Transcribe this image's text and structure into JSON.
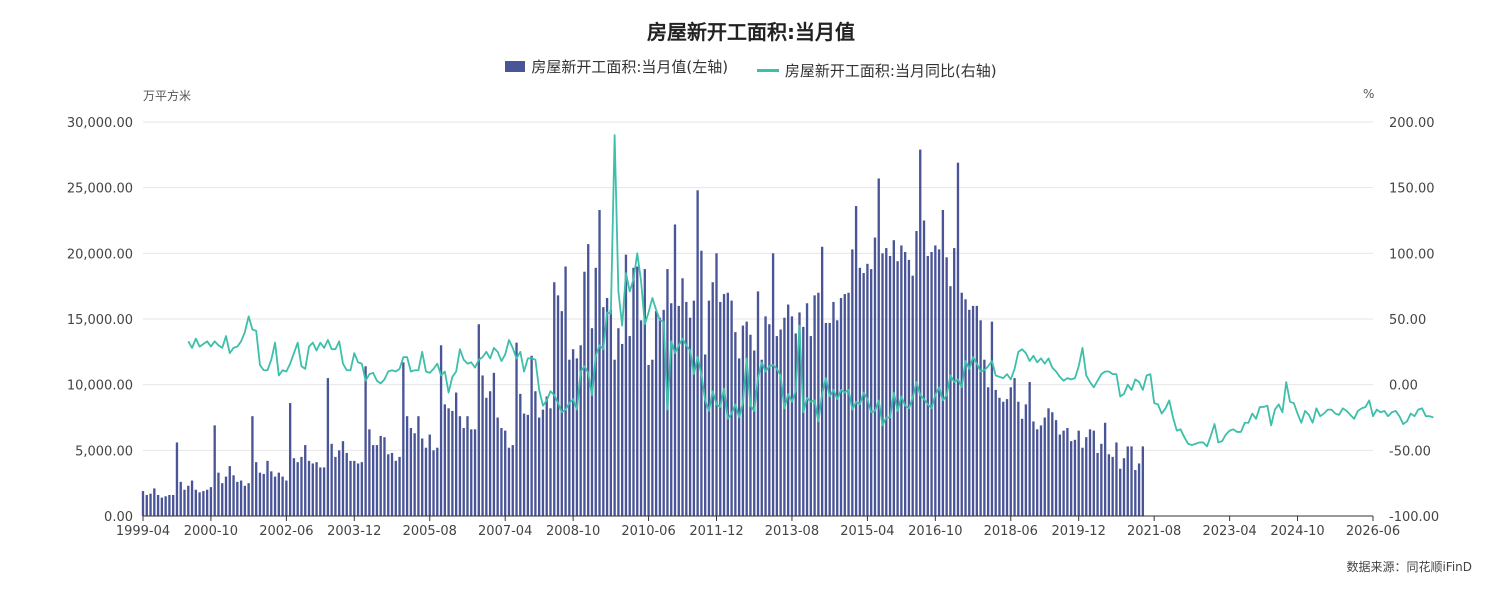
{
  "chart_data": {
    "type": "bar+line",
    "title": "房屋新开工面积:当月值",
    "left_unit": "万平方米",
    "right_unit": "%",
    "source": "数据来源：同花顺iFinD",
    "x_start": "1999-04",
    "x_end": "2026-06",
    "x_ticks": [
      "1999-04",
      "2000-10",
      "2002-06",
      "2003-12",
      "2005-08",
      "2007-04",
      "2008-10",
      "2010-06",
      "2011-12",
      "2013-08",
      "2015-04",
      "2016-10",
      "2018-06",
      "2019-12",
      "2021-08",
      "2023-04",
      "2024-10",
      "2026-06"
    ],
    "y_left": {
      "min": 0,
      "max": 30000,
      "ticks": [
        "0.00",
        "5,000.00",
        "10,000.00",
        "15,000.00",
        "20,000.00",
        "25,000.00",
        "30,000.00"
      ]
    },
    "y_right": {
      "min": -100,
      "max": 200,
      "ticks": [
        "-100.00",
        "-50.00",
        "0.00",
        "50.00",
        "100.00",
        "150.00",
        "200.00"
      ]
    },
    "series": [
      {
        "name": "房屋新开工面积:当月值(左轴)",
        "type": "bar",
        "axis": "left",
        "color": "#4a5597",
        "start": "1999-04",
        "values": [
          1900,
          1600,
          1700,
          2100,
          1600,
          1400,
          1500,
          1600,
          1600,
          5600,
          2600,
          2000,
          2300,
          2700,
          2000,
          1800,
          1900,
          2000,
          2200,
          6900,
          3300,
          2500,
          3000,
          3800,
          3100,
          2600,
          2700,
          2300,
          2500,
          7600,
          4100,
          3300,
          3200,
          4200,
          3400,
          3000,
          3300,
          3000,
          2700,
          8600,
          4400,
          4100,
          4500,
          5400,
          4200,
          4000,
          4100,
          3700,
          3700,
          10500,
          5500,
          4500,
          5000,
          5700,
          4800,
          4200,
          4200,
          4000,
          4100,
          11400,
          6600,
          5400,
          5400,
          6100,
          6000,
          4700,
          4800,
          4200,
          4500,
          11700,
          7600,
          6700,
          6300,
          7600,
          5900,
          5200,
          6200,
          5000,
          5200,
          13000,
          8500,
          8200,
          8000,
          9400,
          7600,
          6700,
          7600,
          6600,
          6600,
          14600,
          10700,
          9000,
          9500,
          10900,
          7500,
          6700,
          6500,
          5200,
          5400,
          13200,
          9300,
          7800,
          7700,
          12200,
          9500,
          7500,
          8100,
          9100,
          8200,
          17800,
          16800,
          15600,
          19000,
          11900,
          12700,
          12000,
          13000,
          18600,
          20700,
          14300,
          18900,
          23300,
          15900,
          16600,
          15700,
          11900,
          14300,
          13100,
          19900,
          13700,
          18900,
          19000,
          14900,
          18800,
          11500,
          11900,
          15600,
          15100,
          15700,
          18800,
          16200,
          22200,
          16000,
          18100,
          16300,
          15100,
          16400,
          24800,
          20200,
          12300,
          16400,
          17800,
          20000,
          16300,
          16900,
          17000,
          16400,
          14000,
          12000,
          14500,
          14800,
          13800,
          12600,
          17100,
          11900,
          15200,
          14600,
          20000,
          13700,
          14200,
          15100,
          16100,
          15200,
          13900,
          15500,
          14400,
          16200,
          13700,
          16800,
          17000,
          20500,
          14700,
          14700,
          16300,
          14900,
          16600,
          16900,
          17000,
          20300,
          23600,
          18900,
          18500,
          19200,
          18800,
          21200,
          25700,
          20000,
          20400,
          19800,
          21000,
          19400,
          20600,
          20100,
          19500,
          18300,
          21700,
          27900,
          22500,
          19800,
          20100,
          20600,
          20300,
          23300,
          19700,
          17500,
          20400,
          26900,
          17000,
          16500,
          15700,
          16000,
          16000,
          14900,
          11900,
          9800,
          14800,
          9600,
          9000,
          8700,
          8900,
          9800,
          10500,
          8700,
          7400,
          8500,
          10200,
          7200,
          6600,
          6900,
          7500,
          8200,
          7900,
          7300,
          6200,
          6500,
          6700,
          5700,
          5800,
          6500,
          5200,
          6000,
          6600,
          6500,
          4800,
          5500,
          7100,
          4700,
          4500,
          5600,
          3600,
          4400,
          5300,
          5300,
          3500,
          4000,
          5300
        ]
      },
      {
        "name": "房屋新开工面积:当月同比(右轴)",
        "type": "line",
        "axis": "right",
        "color": "#3dbfa9",
        "start": "2000-04",
        "values": [
          33,
          28,
          35,
          29,
          31,
          33,
          29,
          33,
          30,
          28,
          37,
          24,
          28,
          29,
          33,
          40,
          52,
          42,
          41,
          15,
          11,
          11,
          19,
          32,
          7,
          11,
          10,
          16,
          24,
          32,
          14,
          12,
          29,
          32,
          26,
          32,
          28,
          34,
          27,
          27,
          33,
          16,
          11,
          11,
          24,
          17,
          16,
          3,
          8,
          9,
          3,
          1,
          4,
          10,
          11,
          10,
          12,
          21,
          21,
          10,
          11,
          11,
          25,
          10,
          9,
          12,
          16,
          7,
          10,
          -6,
          6,
          10,
          27,
          19,
          16,
          17,
          13,
          19,
          21,
          25,
          20,
          28,
          25,
          18,
          23,
          34,
          28,
          20,
          25,
          10,
          20,
          20,
          19,
          -4,
          -16,
          -12,
          -5,
          -8,
          -14,
          -21,
          -19,
          -14,
          -11,
          -19,
          10,
          14,
          9,
          -8,
          22,
          30,
          27,
          55,
          54,
          190,
          71,
          45,
          85,
          71,
          80,
          100,
          79,
          46,
          55,
          66,
          57,
          49,
          48,
          -19,
          33,
          24,
          30,
          35,
          30,
          26,
          8,
          21,
          8,
          -12,
          -20,
          -5,
          -15,
          -17,
          -3,
          -26,
          -22,
          -15,
          -25,
          -14,
          20,
          -16,
          -20,
          5,
          17,
          10,
          14,
          15,
          12,
          7,
          -18,
          -7,
          -13,
          -5,
          45,
          -21,
          -10,
          -13,
          -12,
          -28,
          -7,
          5,
          -9,
          -4,
          -11,
          -4,
          -6,
          -4,
          -19,
          -13,
          -15,
          -6,
          -11,
          -21,
          -20,
          -12,
          -31,
          -25,
          -25,
          -6,
          -20,
          -9,
          -16,
          -18,
          -10,
          2,
          -8,
          -11,
          -15,
          -18,
          -8,
          -2,
          -12,
          -8,
          7,
          2,
          4,
          -2,
          18,
          12,
          21,
          16,
          10,
          11,
          14,
          18,
          7,
          6,
          5,
          8,
          4,
          12,
          25,
          27,
          24,
          18,
          22,
          17,
          20,
          16,
          20,
          13,
          10,
          6,
          3,
          5,
          4,
          5,
          14,
          28,
          7,
          2,
          -2,
          3,
          8,
          10,
          10,
          8,
          8,
          -9,
          -7,
          0,
          -4,
          4,
          2,
          -4,
          7,
          8,
          -14,
          -15,
          -22,
          -18,
          -12,
          -25,
          -35,
          -34,
          -40,
          -45,
          -46,
          -45,
          -44,
          -44,
          -47,
          -39,
          -30,
          -44,
          -43,
          -38,
          -35,
          -34,
          -36,
          -36,
          -29,
          -29,
          -22,
          -26,
          -17,
          -17,
          -16,
          -31,
          -19,
          -15,
          -21,
          2,
          -13,
          -14,
          -22,
          -29,
          -20,
          -23,
          -29,
          -18,
          -24,
          -22,
          -19,
          -19,
          -22,
          -23,
          -18,
          -20,
          -23,
          -26,
          -20,
          -18,
          -17,
          -12,
          -24,
          -19,
          -21,
          -20,
          -24,
          -21,
          -20,
          -24,
          -30,
          -28,
          -22,
          -24,
          -19,
          -18,
          -24,
          -24,
          -25
        ]
      }
    ]
  }
}
